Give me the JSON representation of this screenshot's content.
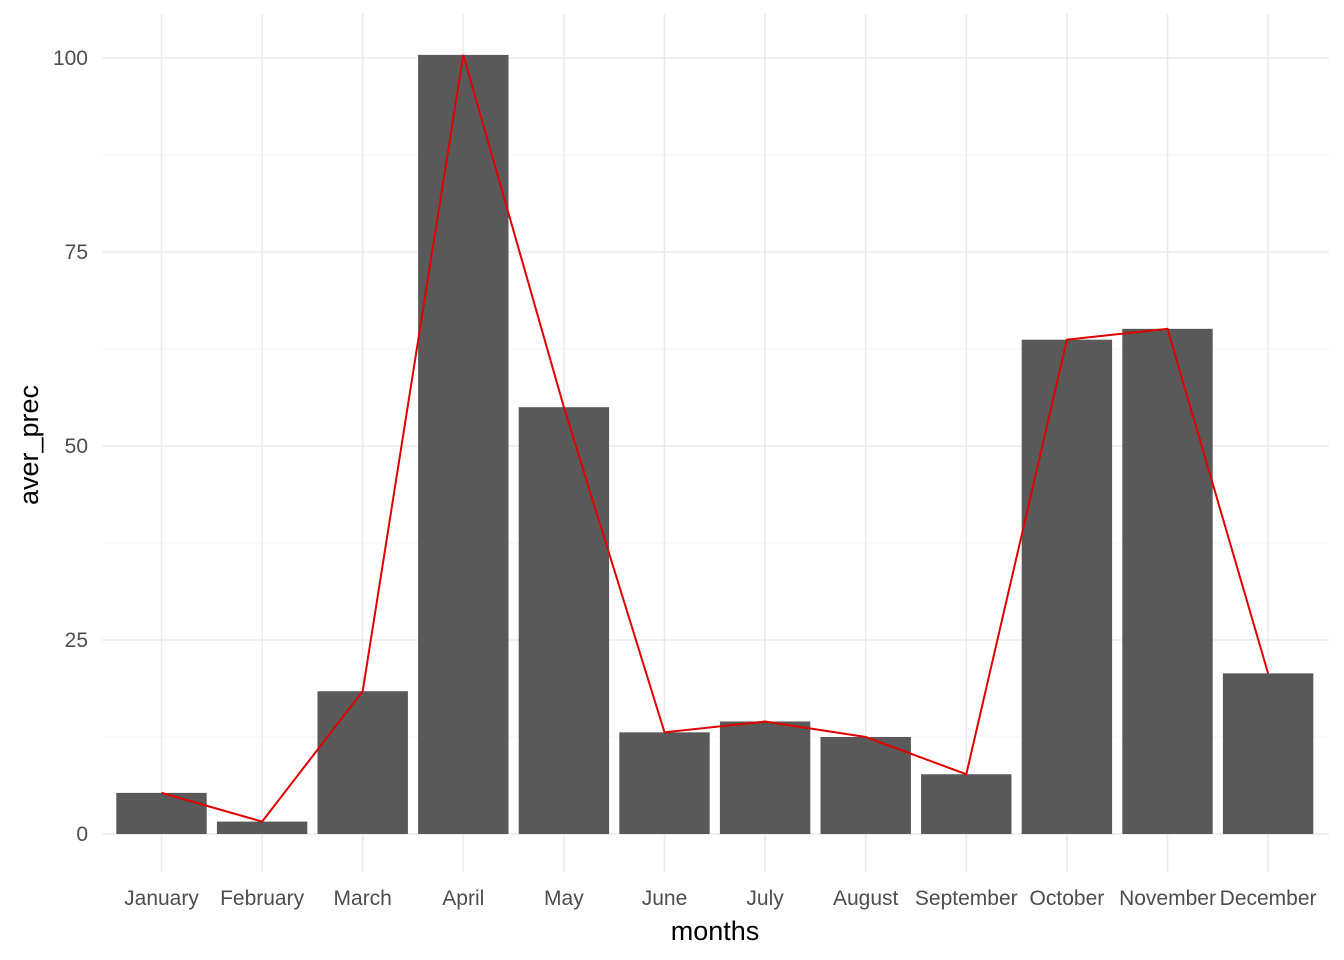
{
  "chart_data": {
    "type": "bar",
    "categories": [
      "January",
      "February",
      "March",
      "April",
      "May",
      "June",
      "July",
      "August",
      "September",
      "October",
      "November",
      "December"
    ],
    "values": [
      5.3,
      1.6,
      18.4,
      100.4,
      55.0,
      13.1,
      14.5,
      12.5,
      7.7,
      63.7,
      65.1,
      20.7
    ],
    "overlay_line": {
      "type": "line",
      "values": [
        5.3,
        1.6,
        18.4,
        100.4,
        55.0,
        13.1,
        14.5,
        12.5,
        7.7,
        63.7,
        65.1,
        20.7
      ]
    },
    "xlabel": "months",
    "ylabel": "aver_prec",
    "ylim": [
      0,
      100
    ],
    "yticks": [
      0,
      25,
      50,
      75,
      100
    ],
    "grid": true,
    "legend": "none",
    "colors": {
      "bar": "#595959",
      "line": "#e00000",
      "grid": "#ebebeb"
    }
  }
}
